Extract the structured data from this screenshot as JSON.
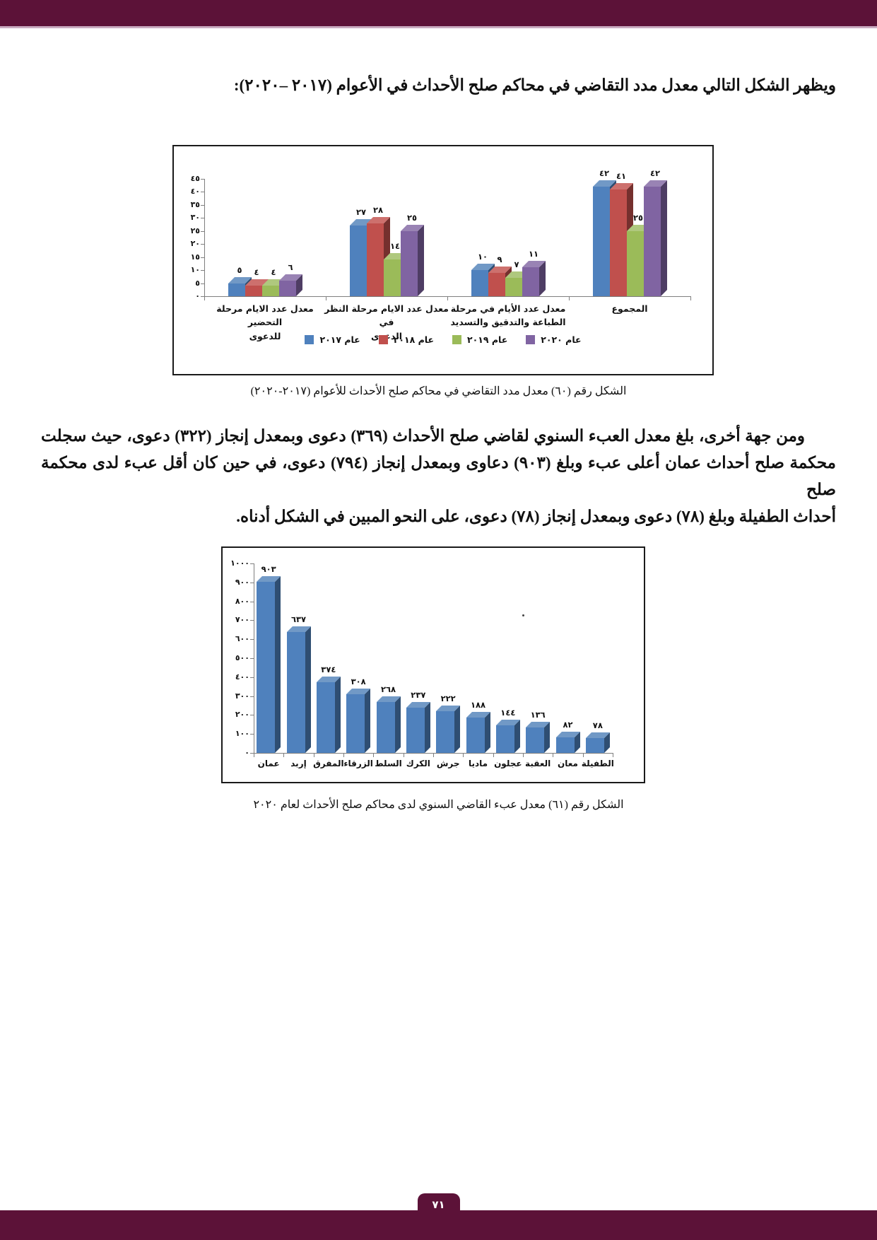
{
  "page": {
    "accent_color": "#5C1238",
    "footer_page_number": "٧١"
  },
  "intro_paragraph": {
    "text": "ويظهر الشكل التالي معدل مدد التقاضي في محاكم صلح الأحداث في الأعوام (٢٠١٧ –٢٠٢٠):"
  },
  "figure60": {
    "caption": "الشكل رقم (٦٠) معدل مدد التقاضي في محاكم صلح الأحداث للأعوام (٢٠١٧-٢٠٢٠)"
  },
  "body_paragraph": {
    "lines": [
      "ومن جهة أخرى، بلغ معدل العبء السنوي لقاضي صلح الأحداث (٣٦٩) دعوى وبمعدل إنجاز (٣٢٢) دعوى، حيث سجلت",
      "محكمة صلح أحداث عمان أعلى عبء وبلغ (٩٠٣) دعاوى وبمعدل إنجاز (٧٩٤) دعوى، في حين كان أقل عبء لدى محكمة صلح",
      "أحداث الطفيلة وبلغ (٧٨) دعوى وبمعدل إنجاز (٧٨) دعوى، على النحو المبين في الشكل أدناه."
    ]
  },
  "figure61": {
    "caption": "الشكل رقم (٦١) معدل عبء القاضي السنوي لدى محاكم صلح الأحداث لعام ٢٠٢٠"
  },
  "chart_data": [
    {
      "type": "bar",
      "title": "",
      "categories": [
        "معدل عدد الايام مرحلة التحضير\nللدعوى",
        "معدل عدد الايام مرحلة النظر في\nالدعوى",
        "معدل عدد الأيام في مرحلة\nالطباعة والتدقيق والتسديد",
        "المجموع"
      ],
      "series": [
        {
          "name": "عام ٢٠١٧",
          "color": "#4F81BD",
          "values": [
            5,
            27,
            10,
            42
          ]
        },
        {
          "name": "عام ٢٠١٨",
          "color": "#C0504D",
          "values": [
            4,
            28,
            9,
            41
          ]
        },
        {
          "name": "عام ٢٠١٩",
          "color": "#9BBB59",
          "values": [
            4,
            14,
            7,
            25
          ]
        },
        {
          "name": "عام ٢٠٢٠",
          "color": "#8064A2",
          "values": [
            6,
            25,
            11,
            42
          ]
        }
      ],
      "ylim": [
        0,
        45
      ],
      "ytick_step": 5,
      "grid": false,
      "legend_position": "bottom",
      "numerals": "arabic-indic",
      "bar_style": "3d"
    },
    {
      "type": "bar",
      "title": "",
      "categories": [
        "عمان",
        "إربد",
        "المفرق",
        "الزرقاء",
        "السلط",
        "الكرك",
        "جرش",
        "ماديا",
        "عجلون",
        "العقبة",
        "معان",
        "الطفيلة"
      ],
      "series": [
        {
          "name": "",
          "color": "#4F81BD",
          "values": [
            903,
            637,
            374,
            308,
            268,
            237,
            222,
            188,
            144,
            136,
            82,
            78
          ]
        }
      ],
      "ylim": [
        0,
        1000
      ],
      "ytick_step": 100,
      "grid": false,
      "legend_position": "none",
      "numerals": "arabic-indic",
      "bar_style": "3d"
    }
  ]
}
